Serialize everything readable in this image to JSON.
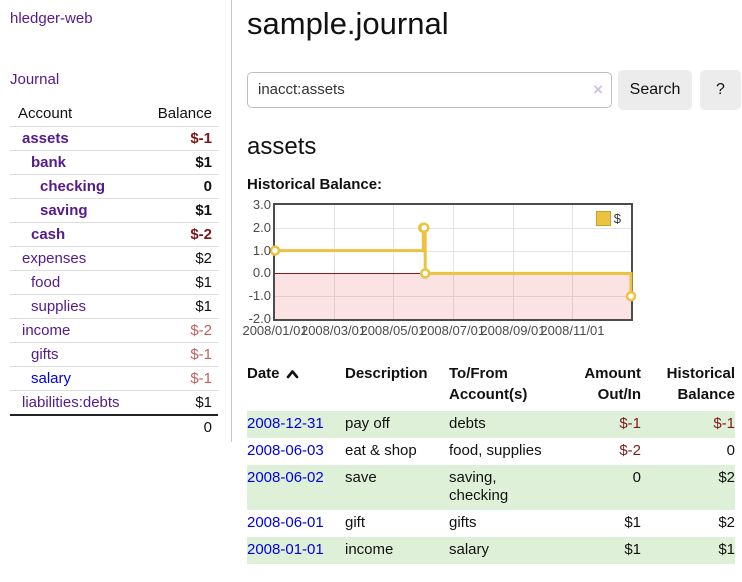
{
  "app_title": "hledger-web",
  "sidebar": {
    "journal_link": "Journal",
    "accounts": {
      "col_account": "Account",
      "col_balance": "Balance",
      "rows": [
        {
          "name": "assets",
          "balance": "$-1",
          "indent": 1,
          "em": true,
          "neg": true,
          "blue": false
        },
        {
          "name": "bank",
          "balance": "$1",
          "indent": 2,
          "em": true,
          "neg": false,
          "blue": false
        },
        {
          "name": "checking",
          "balance": "0",
          "indent": 3,
          "em": true,
          "neg": false,
          "blue": false
        },
        {
          "name": "saving",
          "balance": "$1",
          "indent": 3,
          "em": true,
          "neg": false,
          "blue": false
        },
        {
          "name": "cash",
          "balance": "$-2",
          "indent": 2,
          "em": true,
          "neg": true,
          "blue": false
        },
        {
          "name": "expenses",
          "balance": "$2",
          "indent": 1,
          "em": false,
          "neg": false,
          "blue": false
        },
        {
          "name": "food",
          "balance": "$1",
          "indent": 2,
          "em": false,
          "neg": false,
          "blue": false
        },
        {
          "name": "supplies",
          "balance": "$1",
          "indent": 2,
          "em": false,
          "neg": false,
          "blue": false
        },
        {
          "name": "income",
          "balance": "$-2",
          "indent": 1,
          "em": false,
          "neg": true,
          "blue": false
        },
        {
          "name": "gifts",
          "balance": "$-1",
          "indent": 2,
          "em": false,
          "neg": true,
          "blue": false
        },
        {
          "name": "salary",
          "balance": "$-1",
          "indent": 2,
          "em": false,
          "neg": true,
          "blue": true
        },
        {
          "name": "liabilities:debts",
          "balance": "$1",
          "indent": 1,
          "em": false,
          "neg": false,
          "blue": false
        }
      ],
      "total": "0"
    }
  },
  "main": {
    "title": "sample.journal",
    "search": {
      "value": "inacct:assets",
      "clear": "×",
      "search_label": "Search",
      "help_label": "?"
    },
    "heading": "assets",
    "chart_title": "Historical Balance:"
  },
  "chart_data": {
    "type": "line",
    "style": "steps",
    "title": "Historical Balance:",
    "x_range": [
      "2008-01-01",
      "2008-12-31"
    ],
    "ylim": [
      -2,
      3
    ],
    "y_ticks": [
      "3.0",
      "2.0",
      "1.0",
      "0.0",
      "-1.0",
      "-2.0"
    ],
    "x_ticks": [
      "2008/01/01",
      "2008/03/01",
      "2008/05/01",
      "2008/07/01",
      "2008/09/01",
      "2008/11/01"
    ],
    "grid": true,
    "legend": {
      "label": "$",
      "position": "top-right"
    },
    "series": [
      {
        "name": "$",
        "color": "#edc240",
        "points": [
          [
            "2008-01-01",
            1
          ],
          [
            "2008-06-01",
            2
          ],
          [
            "2008-06-02",
            2
          ],
          [
            "2008-06-03",
            0
          ],
          [
            "2008-12-31",
            -1
          ]
        ]
      }
    ],
    "negative_region_color": "rgba(232,80,80,0.16)",
    "zero_line_color": "#8b1a1a"
  },
  "register": {
    "headers": {
      "date": "Date",
      "description": "Description",
      "tofrom": "To/From Account(s)",
      "amount": "Amount Out/In",
      "historical": "Historical Balance"
    },
    "rows": [
      {
        "date": "2008-12-31",
        "description": "pay off",
        "tofrom": "debts",
        "amount": "$-1",
        "amount_neg": true,
        "historical": "$-1",
        "historical_neg": true,
        "green": true
      },
      {
        "date": "2008-06-03",
        "description": "eat & shop",
        "tofrom": "food, supplies",
        "amount": "$-2",
        "amount_neg": true,
        "historical": "0",
        "historical_neg": false,
        "green": false
      },
      {
        "date": "2008-06-02",
        "description": "save",
        "tofrom": "saving, checking",
        "amount": "0",
        "amount_neg": false,
        "historical": "$2",
        "historical_neg": false,
        "green": true
      },
      {
        "date": "2008-06-01",
        "description": "gift",
        "tofrom": "gifts",
        "amount": "$1",
        "amount_neg": false,
        "historical": "$2",
        "historical_neg": false,
        "green": false
      },
      {
        "date": "2008-01-01",
        "description": "income",
        "tofrom": "salary",
        "amount": "$1",
        "amount_neg": false,
        "historical": "$1",
        "historical_neg": false,
        "green": true
      }
    ]
  }
}
